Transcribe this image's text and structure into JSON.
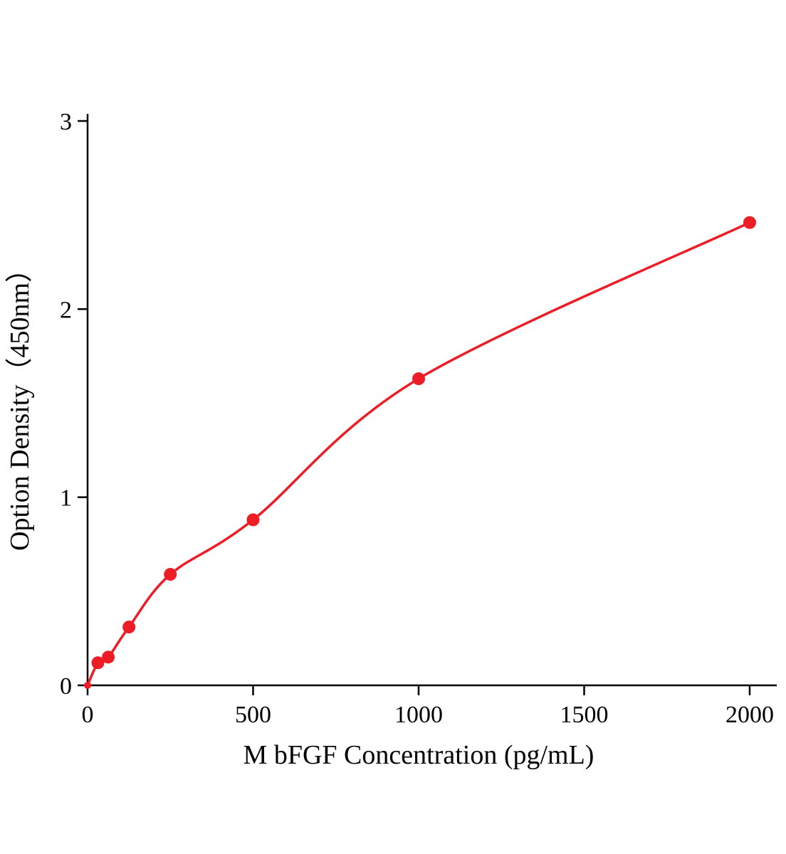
{
  "figure": {
    "background": "#ffffff"
  },
  "chart_data": {
    "type": "scatter",
    "curve": "smooth-line-through-points",
    "x": [
      0,
      31.25,
      62.5,
      125,
      250,
      500,
      1000,
      2000
    ],
    "y": [
      0.0,
      0.12,
      0.15,
      0.31,
      0.59,
      0.88,
      1.63,
      2.46
    ],
    "title": "",
    "xlabel": "M bFGF Concentration (pg/mL)",
    "ylabel": "Option Density（450nm）",
    "xlim": [
      0,
      2000
    ],
    "ylim": [
      0,
      3
    ],
    "xticks": [
      0,
      500,
      1000,
      1500,
      2000
    ],
    "yticks": [
      0,
      1,
      2,
      3
    ],
    "grid": false,
    "legend": "none",
    "line_color": "#ee1c25",
    "marker_color": "#ee1c25",
    "axis_color": "#000000"
  }
}
